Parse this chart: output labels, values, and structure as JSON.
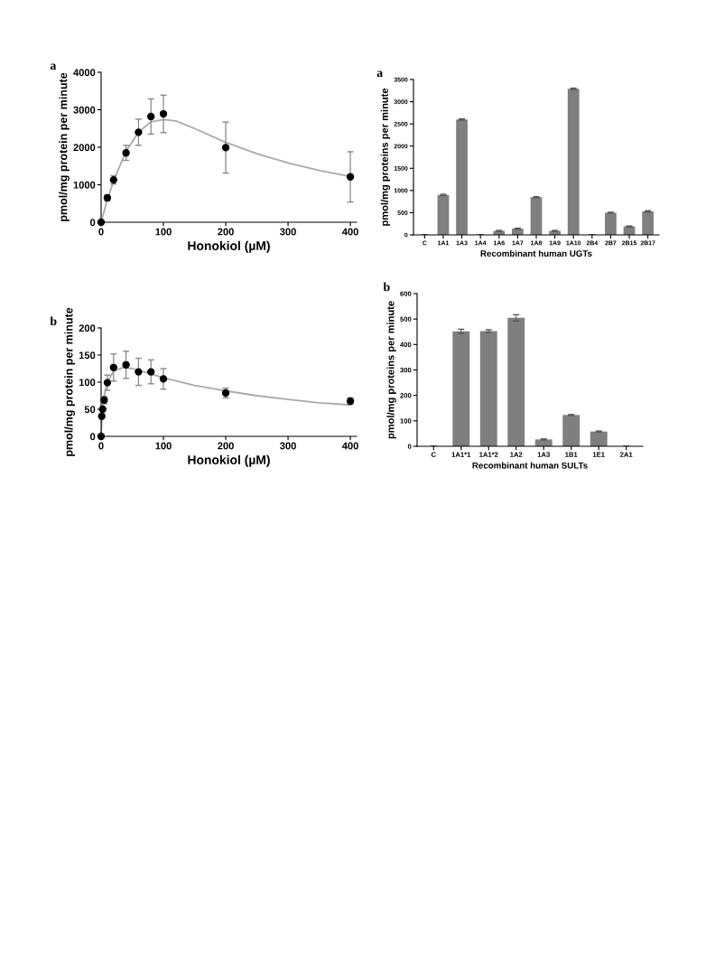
{
  "chart_data": [
    {
      "type": "scatter",
      "title": "a",
      "xlabel": "Honokiol (µM)",
      "ylabel": "pmol/mg protein per minute",
      "xlim": [
        0,
        410
      ],
      "xticks": [
        0,
        100,
        200,
        300,
        400
      ],
      "ylim": [
        0,
        4000
      ],
      "yticks": [
        0,
        1000,
        2000,
        3000,
        4000
      ],
      "grid": false,
      "legend": false,
      "marker": "circle",
      "series": [
        {
          "type": "scatter",
          "color": "#000000",
          "x": [
            0,
            10,
            20,
            40,
            60,
            80,
            100,
            200,
            400
          ],
          "values": [
            0,
            650,
            1130,
            1850,
            2400,
            2820,
            2890,
            1990,
            1210
          ],
          "errors": [
            null,
            80,
            110,
            200,
            350,
            470,
            500,
            680,
            670
          ]
        },
        {
          "type": "line",
          "color": "#aaaaaa",
          "marker": "none",
          "x": [
            0,
            10,
            20,
            40,
            60,
            80,
            100,
            120,
            150,
            200,
            250,
            300,
            350,
            400
          ],
          "values": [
            0,
            600,
            1100,
            1900,
            2400,
            2680,
            2740,
            2700,
            2500,
            2130,
            1830,
            1580,
            1380,
            1220
          ]
        }
      ]
    },
    {
      "type": "bar",
      "title": "a",
      "xlabel": "Recombinant human UGTs",
      "ylabel": "pmol/mg proteins per minute",
      "ylim": [
        0,
        3500
      ],
      "yticks": [
        0,
        500,
        1000,
        1500,
        2000,
        2500,
        3000,
        3500
      ],
      "grid": false,
      "legend": false,
      "categories": [
        "C",
        "1A1",
        "1A3",
        "1A4",
        "1A6",
        "1A7",
        "1A8",
        "1A9",
        "1A10",
        "2B4",
        "2B7",
        "2B15",
        "2B17"
      ],
      "series": [
        {
          "color": "#7f7f7f",
          "values": [
            0,
            900,
            2600,
            0,
            90,
            140,
            850,
            90,
            3290,
            0,
            500,
            190,
            530
          ],
          "errors": [
            null,
            15,
            15,
            null,
            10,
            10,
            10,
            10,
            15,
            null,
            10,
            10,
            15
          ]
        }
      ]
    },
    {
      "type": "scatter",
      "title": "b",
      "xlabel": "Honokiol (µM)",
      "ylabel": "pmol/mg protein per minute",
      "xlim": [
        0,
        410
      ],
      "xticks": [
        0,
        100,
        200,
        300,
        400
      ],
      "ylim": [
        0,
        200
      ],
      "yticks": [
        0,
        50,
        100,
        150,
        200
      ],
      "grid": false,
      "legend": false,
      "marker": "circle",
      "series": [
        {
          "type": "scatter",
          "color": "#000000",
          "x": [
            0,
            1,
            2.5,
            5,
            10,
            20,
            40,
            60,
            80,
            100,
            200,
            400
          ],
          "values": [
            0,
            37,
            50,
            67,
            99,
            127,
            132,
            119,
            119,
            106,
            80,
            65
          ],
          "errors": [
            null,
            null,
            null,
            7,
            14,
            25,
            25,
            25,
            22,
            19,
            9,
            6
          ]
        },
        {
          "type": "line",
          "color": "#aaaaaa",
          "marker": "none",
          "x": [
            0,
            2,
            5,
            10,
            20,
            35,
            50,
            75,
            100,
            150,
            200,
            250,
            300,
            350,
            400
          ],
          "values": [
            0,
            45,
            75,
            100,
            120,
            127,
            125,
            117,
            108,
            94,
            84,
            75,
            68,
            62,
            58
          ]
        }
      ]
    },
    {
      "type": "bar",
      "title": "b",
      "xlabel": "Recombinant human SULTs",
      "ylabel": "pmol/mg proteins per minute",
      "ylim": [
        0,
        600
      ],
      "yticks": [
        0,
        100,
        200,
        300,
        400,
        500,
        600
      ],
      "grid": false,
      "legend": false,
      "categories": [
        "C",
        "1A1*1",
        "1A1*2",
        "1A2",
        "1A3",
        "1B1",
        "1E1",
        "2A1"
      ],
      "series": [
        {
          "color": "#7f7f7f",
          "values": [
            0,
            452,
            453,
            505,
            27,
            123,
            58,
            0
          ],
          "errors": [
            null,
            8,
            5,
            12,
            2,
            2,
            2,
            null
          ]
        }
      ]
    }
  ]
}
